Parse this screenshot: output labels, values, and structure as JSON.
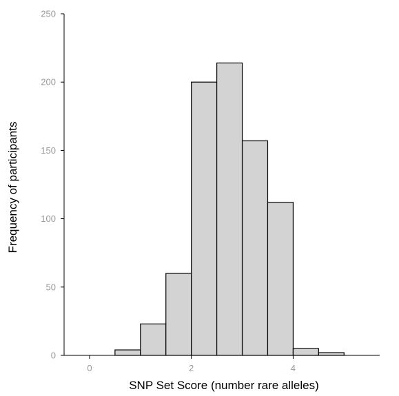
{
  "chart_data": {
    "type": "bar",
    "subtype": "histogram",
    "xlabel": "SNP Set Score (number rare alleles)",
    "ylabel": "Frequency of participants",
    "xlim": [
      -0.5,
      5.7
    ],
    "ylim": [
      0,
      250
    ],
    "x_ticks": [
      0,
      2,
      4
    ],
    "y_ticks": [
      0,
      50,
      100,
      150,
      200,
      250
    ],
    "bin_width": 0.5,
    "bins": [
      {
        "start": 0.5,
        "end": 1.0,
        "value": 4
      },
      {
        "start": 1.0,
        "end": 1.5,
        "value": 23
      },
      {
        "start": 1.5,
        "end": 2.0,
        "value": 60
      },
      {
        "start": 2.0,
        "end": 2.5,
        "value": 200
      },
      {
        "start": 2.5,
        "end": 3.0,
        "value": 214
      },
      {
        "start": 3.0,
        "end": 3.5,
        "value": 157
      },
      {
        "start": 3.5,
        "end": 4.0,
        "value": 112
      },
      {
        "start": 4.0,
        "end": 4.5,
        "value": 5
      },
      {
        "start": 4.5,
        "end": 5.0,
        "value": 2
      }
    ],
    "bar_fill": "#d3d3d3",
    "bar_stroke": "#000000",
    "grid": false
  }
}
